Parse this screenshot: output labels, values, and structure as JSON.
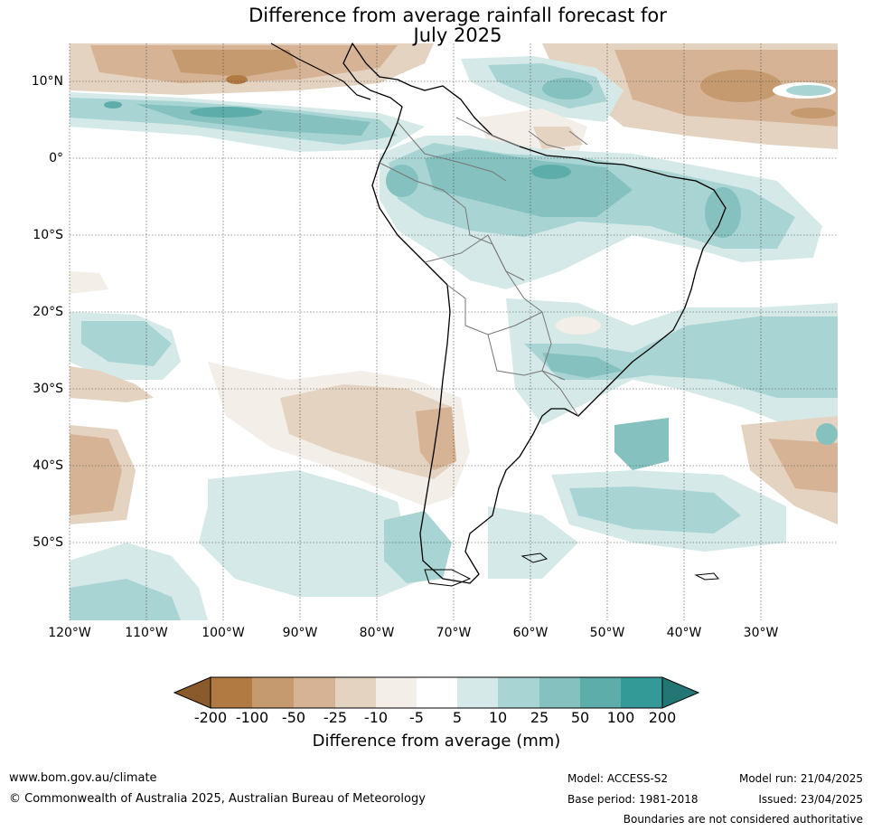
{
  "title": {
    "line1": "Difference from average rainfall forecast for",
    "line2": "July 2025"
  },
  "map": {
    "lat_labels": [
      "10°N",
      "0°",
      "10°S",
      "20°S",
      "30°S",
      "40°S",
      "50°S"
    ],
    "lon_labels": [
      "120°W",
      "110°W",
      "100°W",
      "90°W",
      "80°W",
      "70°W",
      "60°W",
      "50°W",
      "40°W",
      "30°W"
    ]
  },
  "colorbar": {
    "title": "Difference from average (mm)",
    "tick_labels": [
      "-200",
      "-100",
      "-50",
      "-25",
      "-10",
      "-5",
      "5",
      "10",
      "25",
      "50",
      "100",
      "200"
    ],
    "colors": [
      "#8a5a2b",
      "#b07a42",
      "#c59a6e",
      "#d5b394",
      "#e5d3c1",
      "#f3eee8",
      "#ffffff",
      "#d4e9e8",
      "#a8d5d3",
      "#84c1bf",
      "#5dadab",
      "#339a97",
      "#237674"
    ]
  },
  "footer": {
    "website": "www.bom.gov.au/climate",
    "copyright": "© Commonwealth of Australia 2025, Australian Bureau of Meteorology",
    "model": "Model: ACCESS-S2",
    "base_period": "Base period: 1981-2018",
    "model_run": "Model run: 21/04/2025",
    "issued": "Issued: 23/04/2025",
    "disclaimer": "Boundaries are not considered authoritative"
  }
}
